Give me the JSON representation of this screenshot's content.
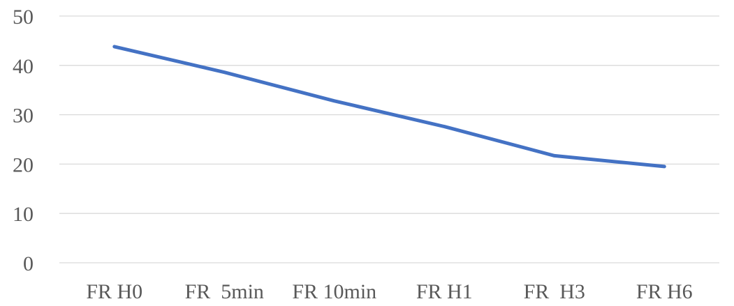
{
  "chart_data": {
    "type": "line",
    "title": "",
    "xlabel": "",
    "ylabel": "",
    "categories": [
      "FR H0",
      "FR  5min",
      "FR 10min",
      "FR H1",
      "FR  H3",
      "FR H6"
    ],
    "series": [
      {
        "values": [
          43.8,
          38.6,
          32.8,
          27.6,
          21.7,
          19.5
        ]
      }
    ],
    "ylim": [
      0,
      50
    ],
    "yticks": [
      0,
      10,
      20,
      30,
      40,
      50
    ],
    "grid": true,
    "legend": "none",
    "colors": {
      "line": "#4472C4",
      "grid": "#D9D9D9",
      "text": "#595959"
    }
  }
}
